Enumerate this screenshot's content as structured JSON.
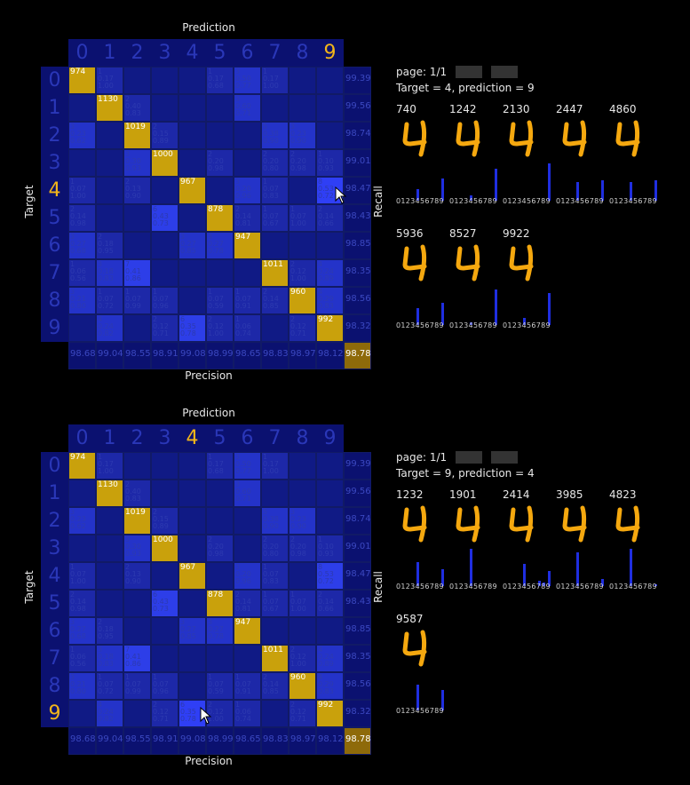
{
  "labels": {
    "prediction": "Prediction",
    "target": "Target",
    "recall": "Recall",
    "precision": "Precision"
  },
  "classes": [
    "0",
    "1",
    "2",
    "3",
    "4",
    "5",
    "6",
    "7",
    "8",
    "9"
  ],
  "matrix": [
    [
      [
        "974"
      ],
      [
        "1\n0.17\n1.00"
      ],
      [
        ""
      ],
      [
        ""
      ],
      [
        ""
      ],
      [
        "1\n0.17\n0.68"
      ],
      [
        "3\n0.50\n0.77"
      ],
      [
        "1\n0.17\n1.00"
      ],
      [
        ""
      ],
      [
        ""
      ],
      [
        "99.39"
      ]
    ],
    [
      [
        ""
      ],
      [
        "1130"
      ],
      [
        "2\n0.40\n0.83"
      ],
      [
        ""
      ],
      [
        ""
      ],
      [
        ""
      ],
      [
        "3\n0.60\n0.71"
      ],
      [
        ""
      ],
      [
        ""
      ],
      [
        ""
      ],
      [
        "99.56"
      ]
    ],
    [
      [
        "3\n0.23\n0.62"
      ],
      [
        ""
      ],
      [
        "1019"
      ],
      [
        "2\n0.15\n0.89"
      ],
      [
        ""
      ],
      [
        ""
      ],
      [
        ""
      ],
      [
        "5\n0.38\n0.90"
      ],
      [
        "3\n0.23\n0.90"
      ],
      [
        ""
      ],
      [
        "98.74"
      ]
    ],
    [
      [
        ""
      ],
      [
        ""
      ],
      [
        "3\n0.30\n0.93"
      ],
      [
        "1000"
      ],
      [
        ""
      ],
      [
        "2\n0.20\n0.98"
      ],
      [
        ""
      ],
      [
        "2\n0.20\n0.80"
      ],
      [
        "2\n0.20\n0.98"
      ],
      [
        "1\n0.10\n0.93"
      ],
      [
        "99.01"
      ]
    ],
    [
      [
        "1\n0.07\n1.00"
      ],
      [
        ""
      ],
      [
        "2\n0.13\n0.90"
      ],
      [
        ""
      ],
      [
        "967"
      ],
      [
        ""
      ],
      [
        "3\n0.20\n0.96"
      ],
      [
        "1\n0.07\n0.83"
      ],
      [
        ""
      ],
      [
        "8\n0.53\n0.72"
      ],
      [
        "98.47"
      ]
    ],
    [
      [
        "2\n0.14\n0.98"
      ],
      [
        ""
      ],
      [
        ""
      ],
      [
        "6\n0.43\n0.73"
      ],
      [
        ""
      ],
      [
        "878"
      ],
      [
        "2\n0.14\n0.81"
      ],
      [
        "1\n0.07\n0.67"
      ],
      [
        "1\n0.07\n1.00"
      ],
      [
        "2\n0.14\n0.66"
      ],
      [
        "98.43"
      ]
    ],
    [
      [
        "3\n0.27\n0.68"
      ],
      [
        "2\n0.18\n0.95"
      ],
      [
        ""
      ],
      [
        ""
      ],
      [
        "3\n0.27\n0.85"
      ],
      [
        "3\n0.27\n0.78"
      ],
      [
        "947"
      ],
      [
        ""
      ],
      [
        ""
      ],
      [
        ""
      ],
      [
        "98.85"
      ]
    ],
    [
      [
        "1\n0.06\n0.56"
      ],
      [
        "3\n0.18\n0.83"
      ],
      [
        "7\n0.41\n0.86"
      ],
      [
        ""
      ],
      [
        ""
      ],
      [
        ""
      ],
      [
        ""
      ],
      [
        "1011"
      ],
      [
        "2\n0.12\n1.00"
      ],
      [
        "4\n0.24\n0.89"
      ],
      [
        "98.35"
      ]
    ],
    [
      [
        "3\n0.21\n0.80"
      ],
      [
        "1\n0.07\n0.72"
      ],
      [
        "1\n0.07\n0.99"
      ],
      [
        "1\n0.07\n0.96"
      ],
      [
        ""
      ],
      [
        "1\n0.07\n0.59"
      ],
      [
        "1\n0.07\n0.91"
      ],
      [
        "2\n0.14\n0.85"
      ],
      [
        "960"
      ],
      [
        "4\n0.29\n0.83"
      ],
      [
        "98.56"
      ]
    ],
    [
      [
        ""
      ],
      [
        "4\n0.24\n0.82"
      ],
      [
        ""
      ],
      [
        "2\n0.12\n0.71"
      ],
      [
        "6\n0.35\n0.78"
      ],
      [
        "2\n0.12\n1.00"
      ],
      [
        "1\n0.06\n0.74"
      ],
      [
        ""
      ],
      [
        "2\n0.12\n0.71"
      ],
      [
        "992"
      ],
      [
        "98.32"
      ]
    ],
    [
      [
        "98.68"
      ],
      [
        "99.04"
      ],
      [
        "98.55"
      ],
      [
        "98.91"
      ],
      [
        "99.08"
      ],
      [
        "98.99"
      ],
      [
        "98.65"
      ],
      [
        "98.83"
      ],
      [
        "98.97"
      ],
      [
        "98.12"
      ],
      [
        "98.78"
      ]
    ]
  ],
  "panel1": {
    "page": "page: 1/1",
    "filter": "Target = 4, prediction = 9",
    "samples": [
      {
        "id": "740",
        "bars": [
          [
            4,
            0.3
          ],
          [
            9,
            0.6
          ]
        ]
      },
      {
        "id": "1242",
        "bars": [
          [
            4,
            0.15
          ],
          [
            9,
            0.85
          ]
        ]
      },
      {
        "id": "2130",
        "bars": [
          [
            9,
            1.0
          ]
        ]
      },
      {
        "id": "2447",
        "bars": [
          [
            4,
            0.5
          ],
          [
            9,
            0.55
          ]
        ]
      },
      {
        "id": "4860",
        "bars": [
          [
            4,
            0.5
          ],
          [
            9,
            0.55
          ]
        ]
      },
      {
        "id": "5936",
        "bars": [
          [
            4,
            0.45
          ],
          [
            9,
            0.6
          ]
        ]
      },
      {
        "id": "8527",
        "bars": [
          [
            4,
            0.08
          ],
          [
            9,
            0.95
          ]
        ]
      },
      {
        "id": "9922",
        "bars": [
          [
            4,
            0.2
          ],
          [
            9,
            0.85
          ]
        ]
      }
    ]
  },
  "panel2": {
    "page": "page: 1/1",
    "filter": "Target = 9, prediction = 4",
    "samples": [
      {
        "id": "1232",
        "bars": [
          [
            4,
            0.65
          ],
          [
            9,
            0.45
          ]
        ]
      },
      {
        "id": "1901",
        "bars": [
          [
            4,
            1.0
          ]
        ]
      },
      {
        "id": "2414",
        "bars": [
          [
            4,
            0.6
          ],
          [
            7,
            0.15
          ],
          [
            8,
            0.1
          ],
          [
            9,
            0.4
          ]
        ]
      },
      {
        "id": "3985",
        "bars": [
          [
            4,
            0.9
          ],
          [
            9,
            0.2
          ]
        ]
      },
      {
        "id": "4823",
        "bars": [
          [
            4,
            1.0
          ],
          [
            9,
            0.05
          ]
        ]
      },
      {
        "id": "9587",
        "bars": [
          [
            4,
            0.7
          ],
          [
            9,
            0.55
          ]
        ]
      }
    ]
  },
  "bar_label": "0123456789",
  "colors": {
    "accent": "#f2b51a",
    "cell": "#101a85",
    "diag": "#c9a10c",
    "bar": "#1f2ee0"
  }
}
